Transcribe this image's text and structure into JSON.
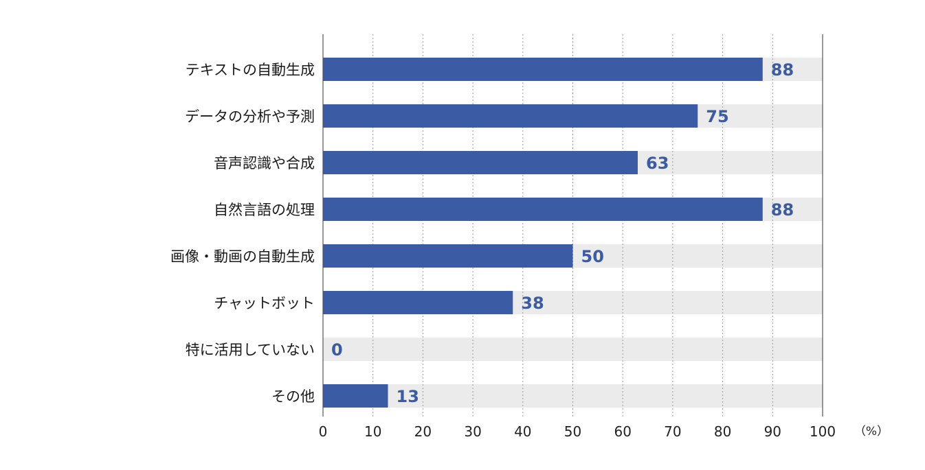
{
  "chart_data": {
    "type": "bar",
    "orientation": "horizontal",
    "categories": [
      "テキストの自動生成",
      "データの分析や予測",
      "音声認識や合成",
      "自然言語の処理",
      "画像・動画の自動生成",
      "チャットボット",
      "特に活用していない",
      "その他"
    ],
    "values": [
      88,
      75,
      63,
      88,
      50,
      38,
      0,
      13
    ],
    "value_labels": [
      "88",
      "75",
      "63",
      "88",
      "50",
      "38",
      "0",
      "13"
    ],
    "xlim": [
      0,
      100
    ],
    "x_ticks": [
      0,
      10,
      20,
      30,
      40,
      50,
      60,
      70,
      80,
      90,
      100
    ],
    "x_tick_labels": [
      "0",
      "10",
      "20",
      "30",
      "40",
      "50",
      "60",
      "70",
      "80",
      "90",
      "100"
    ],
    "x_unit": "（%）",
    "grid": "vertical-dotted",
    "colors": {
      "bar": "#3b5ba5",
      "track": "#ebebeb",
      "value_text": "#3b5ba5",
      "axis": "#555555",
      "grid": "#9a9a9a"
    }
  }
}
